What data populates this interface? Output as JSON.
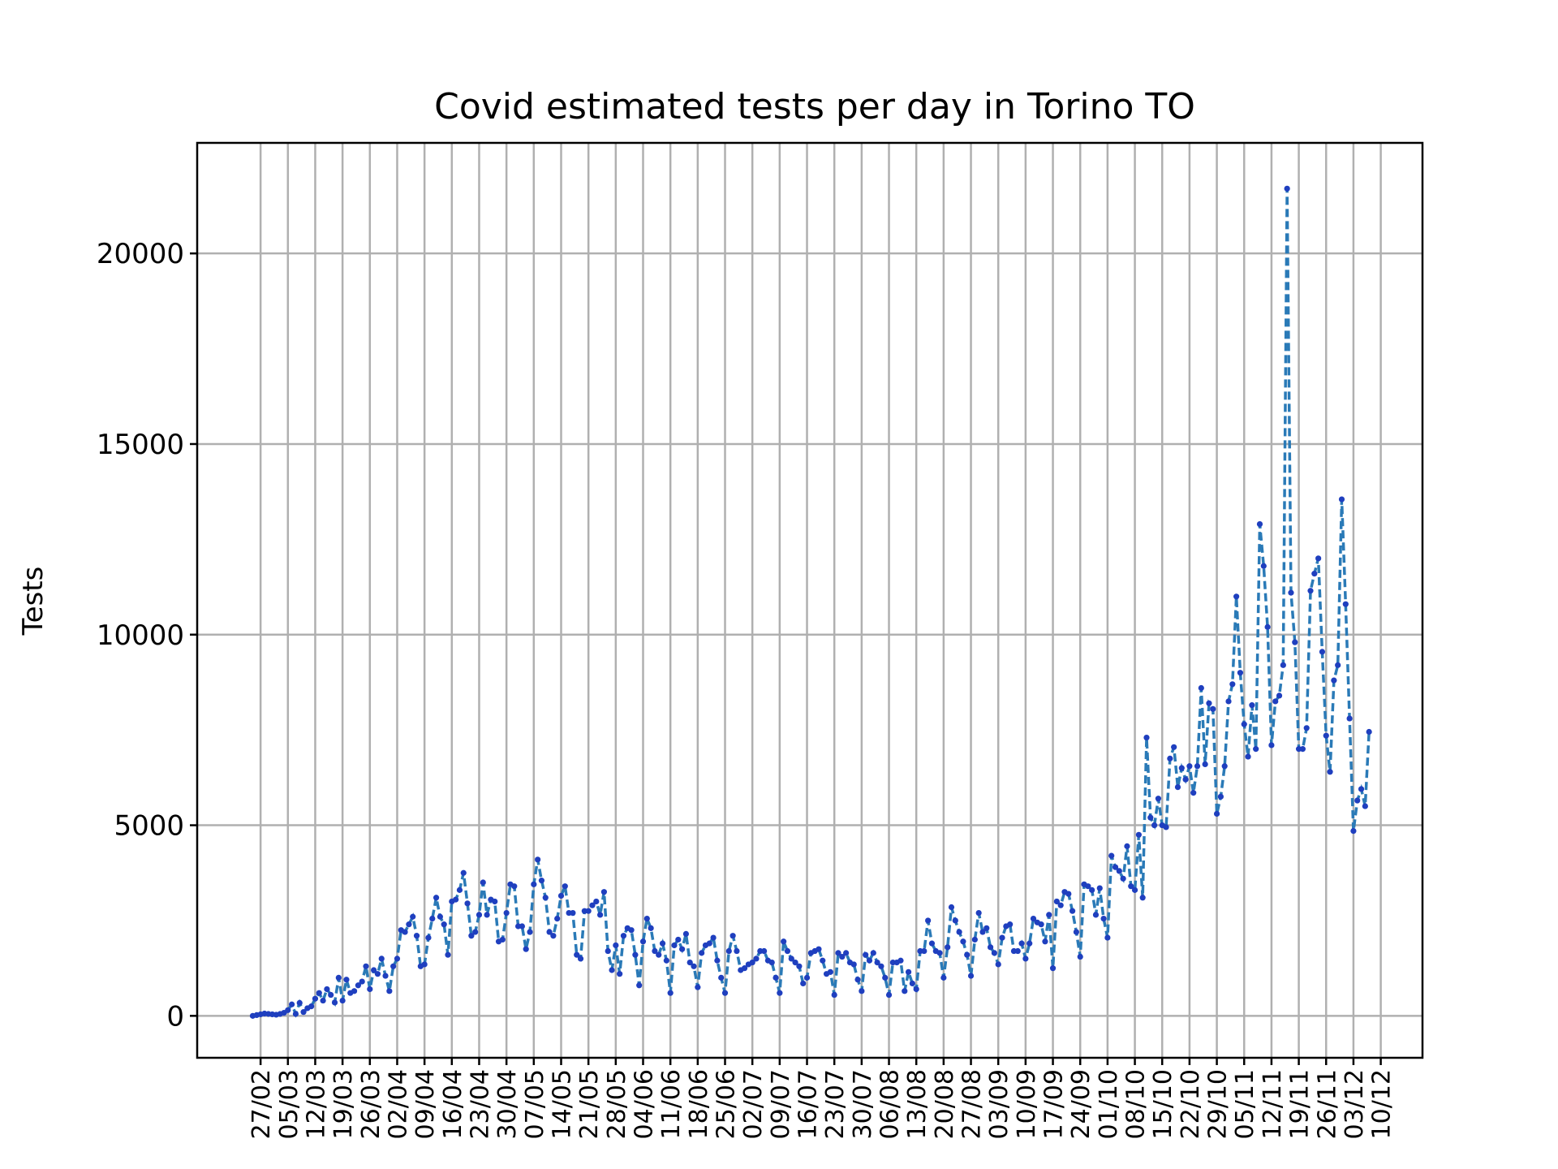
{
  "chart_data": {
    "type": "line",
    "title": "Covid estimated tests per day in Torino TO",
    "xlabel": "",
    "ylabel": "Tests",
    "x_tick_labels": [
      "27/02",
      "05/03",
      "12/03",
      "19/03",
      "26/03",
      "02/04",
      "09/04",
      "16/04",
      "23/04",
      "30/04",
      "07/05",
      "14/05",
      "21/05",
      "28/05",
      "04/06",
      "11/06",
      "18/06",
      "25/06",
      "02/07",
      "09/07",
      "16/07",
      "23/07",
      "30/07",
      "06/08",
      "13/08",
      "20/08",
      "27/08",
      "03/09",
      "10/09",
      "17/09",
      "24/09",
      "01/10",
      "08/10",
      "15/10",
      "22/10",
      "29/10",
      "05/11",
      "12/11",
      "19/11",
      "26/11",
      "03/12",
      "10/12"
    ],
    "y_ticks": [
      0,
      5000,
      10000,
      15000,
      20000
    ],
    "ylim": [
      -1100,
      22900
    ],
    "grid": true,
    "first_date": "2020-02-25",
    "series": [
      {
        "color": "#1f77b4",
        "values": [
          0,
          20,
          40,
          60,
          50,
          40,
          30,
          50,
          80,
          150,
          300,
          50,
          340,
          100,
          200,
          250,
          450,
          600,
          400,
          700,
          550,
          350,
          1000,
          400,
          950,
          600,
          650,
          800,
          900,
          1300,
          700,
          1200,
          1100,
          1500,
          1050,
          650,
          1300,
          1500,
          2250,
          2200,
          2400,
          2600,
          2100,
          1300,
          1350,
          2050,
          2550,
          3100,
          2600,
          2400,
          1600,
          3000,
          3050,
          3300,
          3750,
          2950,
          2100,
          2200,
          2650,
          3500,
          2650,
          3050,
          3000,
          1950,
          2000,
          2700,
          3450,
          3400,
          2350,
          2350,
          1750,
          2200,
          3450,
          4100,
          3550,
          3100,
          2200,
          2100,
          2550,
          3150,
          3400,
          2700,
          2700,
          1600,
          1500,
          2750,
          2750,
          2900,
          3000,
          2650,
          3250,
          1700,
          1200,
          1850,
          1100,
          2100,
          2300,
          2250,
          1600,
          800,
          1950,
          2550,
          2300,
          1700,
          1600,
          1900,
          1450,
          600,
          1850,
          2000,
          1750,
          2150,
          1400,
          1300,
          750,
          1650,
          1850,
          1900,
          2050,
          1450,
          1000,
          600,
          1700,
          2100,
          1700,
          1200,
          1250,
          1350,
          1400,
          1500,
          1700,
          1700,
          1450,
          1400,
          1000,
          600,
          1950,
          1700,
          1500,
          1400,
          1300,
          850,
          1000,
          1650,
          1700,
          1750,
          1450,
          1100,
          1150,
          550,
          1650,
          1550,
          1650,
          1400,
          1350,
          950,
          650,
          1600,
          1450,
          1650,
          1400,
          1300,
          1000,
          550,
          1400,
          1400,
          1450,
          650,
          1150,
          850,
          700,
          1700,
          1700,
          2500,
          1900,
          1700,
          1650,
          1000,
          1800,
          2850,
          2500,
          2200,
          1950,
          1600,
          1050,
          2000,
          2700,
          2200,
          2300,
          1800,
          1650,
          1350,
          2050,
          2350,
          2400,
          1700,
          1700,
          1900,
          1500,
          1900,
          2550,
          2450,
          2400,
          1950,
          2650,
          1250,
          3000,
          2900,
          3250,
          3200,
          2750,
          2200,
          1550,
          3450,
          3400,
          3300,
          2650,
          3350,
          2550,
          2050,
          4200,
          3900,
          3800,
          3600,
          4450,
          3400,
          3300,
          4750,
          3100,
          7300,
          5200,
          5000,
          5700,
          5000,
          4950,
          6750,
          7050,
          6000,
          6500,
          6200,
          6550,
          5850,
          6550,
          8600,
          6600,
          8200,
          8050,
          5300,
          5750,
          6550,
          8250,
          8700,
          11000,
          9000,
          7650,
          6800,
          8150,
          7000,
          12900,
          11800,
          10200,
          7100,
          8250,
          8400,
          9200,
          21700,
          11100,
          9800,
          7000,
          7000,
          7550,
          11150,
          11600,
          12000,
          9550,
          7350,
          6400,
          8800,
          9200,
          13550,
          10800,
          7800,
          4850,
          5650,
          5950,
          5500,
          7450
        ]
      }
    ]
  }
}
